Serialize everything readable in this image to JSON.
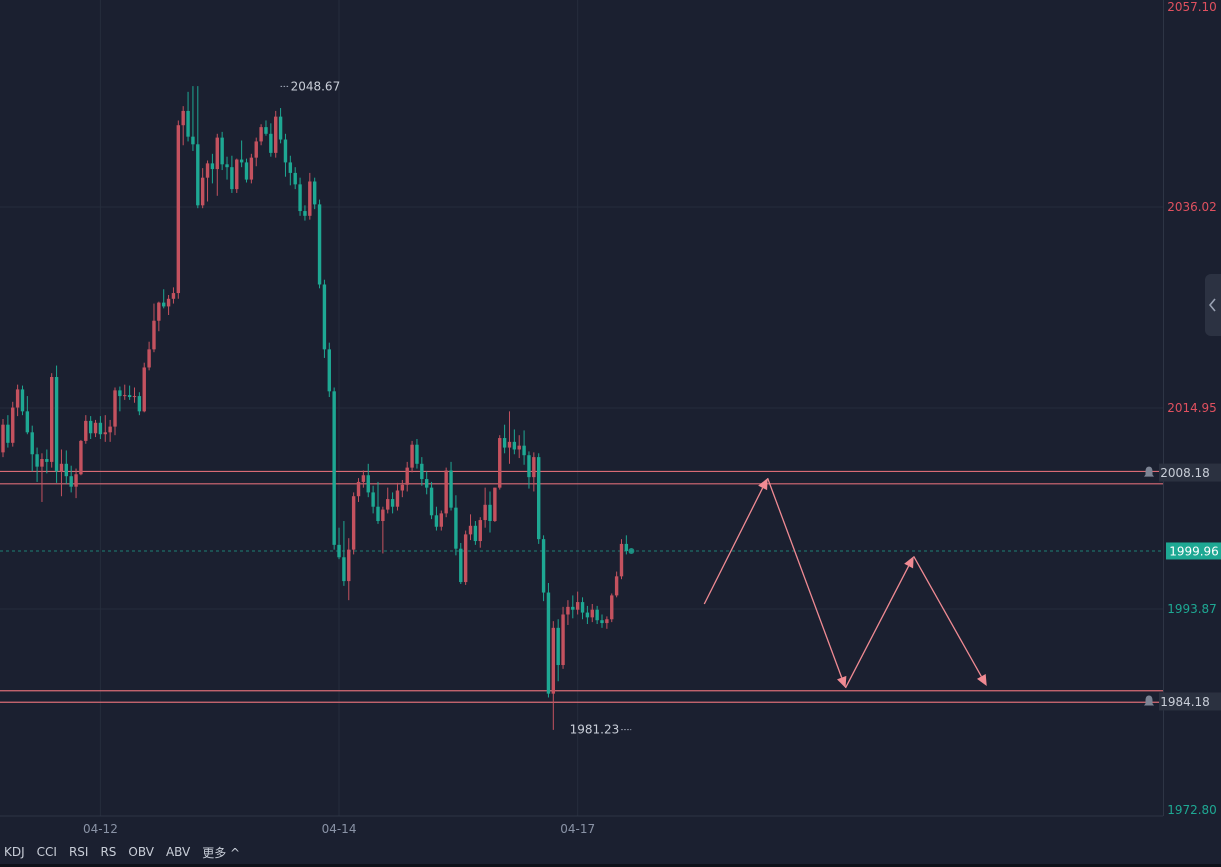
{
  "chart_data": {
    "type": "candlestick",
    "y_axis_ticks": [
      {
        "label": "2057.10",
        "value": 2057.1,
        "color": "#e0505f"
      },
      {
        "label": "2036.02",
        "value": 2036.02,
        "color": "#e0505f"
      },
      {
        "label": "2014.95",
        "value": 2014.95,
        "color": "#e0505f"
      },
      {
        "label": "1993.87",
        "value": 1993.87,
        "color": "#1ea893"
      },
      {
        "label": "1972.80",
        "value": 1972.8,
        "color": "#1ea893"
      }
    ],
    "ylim": [
      1972.8,
      2057.1
    ],
    "x_axis_ticks": [
      {
        "label": "04-12",
        "index": 20
      },
      {
        "label": "04-14",
        "index": 69
      },
      {
        "label": "04-17",
        "index": 118
      }
    ],
    "current_price": {
      "label": "1999.96",
      "value": 1999.96
    },
    "high_marker": {
      "label": "2048.67",
      "value": 2048.67,
      "index": 57
    },
    "low_marker": {
      "label": "1981.23",
      "value": 1981.23,
      "index": 129
    },
    "alert_lines": [
      {
        "label": "2008.18",
        "value": 2008.18,
        "band": [
          2007.0,
          2008.3
        ]
      },
      {
        "label": "1984.18",
        "value": 1984.18,
        "band": [
          1984.1,
          1985.3
        ]
      }
    ],
    "projection_path": [
      {
        "index": 144,
        "value": 1994.4
      },
      {
        "index": 157,
        "value": 2007.6
      },
      {
        "index": 173,
        "value": 1985.6
      },
      {
        "index": 187,
        "value": 1999.4
      },
      {
        "index": 202,
        "value": 1985.8
      }
    ],
    "candles": [
      [
        2010.3,
        2013.8,
        2009.8,
        2013.2
      ],
      [
        2013.2,
        2014.2,
        2010.8,
        2011.3
      ],
      [
        2011.3,
        2015.6,
        2010.9,
        2015.0
      ],
      [
        2015.0,
        2017.4,
        2014.1,
        2016.9
      ],
      [
        2016.9,
        2017.3,
        2014.2,
        2014.6
      ],
      [
        2014.6,
        2016.2,
        2012.2,
        2012.4
      ],
      [
        2012.4,
        2013.1,
        2008.3,
        2010.1
      ],
      [
        2010.1,
        2010.8,
        2007.2,
        2008.8
      ],
      [
        2008.8,
        2010.2,
        2005.1,
        2009.6
      ],
      [
        2009.6,
        2010.6,
        2008.1,
        2009.3
      ],
      [
        2009.3,
        2018.6,
        2008.7,
        2018.2
      ],
      [
        2018.2,
        2019.4,
        2007.1,
        2008.3
      ],
      [
        2008.3,
        2010.6,
        2005.7,
        2009.1
      ],
      [
        2009.1,
        2010.5,
        2007.0,
        2007.8
      ],
      [
        2007.8,
        2008.9,
        2006.1,
        2006.7
      ],
      [
        2006.7,
        2008.6,
        2005.5,
        2008.0
      ],
      [
        2008.0,
        2011.6,
        2007.9,
        2011.5
      ],
      [
        2011.5,
        2014.2,
        2011.2,
        2013.6
      ],
      [
        2013.6,
        2014.1,
        2011.7,
        2012.3
      ],
      [
        2012.3,
        2013.7,
        2011.9,
        2013.4
      ],
      [
        2013.4,
        2014.1,
        2011.7,
        2012.2
      ],
      [
        2012.2,
        2014.2,
        2011.4,
        2012.4
      ],
      [
        2012.4,
        2013.7,
        2011.4,
        2013.0
      ],
      [
        2013.0,
        2017.1,
        2012.1,
        2016.8
      ],
      [
        2016.8,
        2017.2,
        2014.6,
        2016.2
      ],
      [
        2016.2,
        2017.4,
        2015.8,
        2016.3
      ],
      [
        2016.3,
        2017.3,
        2015.8,
        2016.1
      ],
      [
        2016.1,
        2017.1,
        2015.5,
        2016.2
      ],
      [
        2016.2,
        2016.6,
        2014.2,
        2014.6
      ],
      [
        2014.6,
        2019.7,
        2014.5,
        2019.2
      ],
      [
        2019.2,
        2021.9,
        2018.9,
        2021.1
      ],
      [
        2021.1,
        2025.9,
        2020.8,
        2024.1
      ],
      [
        2024.1,
        2026.1,
        2023.0,
        2026.0
      ],
      [
        2026.0,
        2027.4,
        2025.4,
        2025.6
      ],
      [
        2025.6,
        2026.8,
        2024.7,
        2026.4
      ],
      [
        2026.4,
        2027.6,
        2025.9,
        2027.0
      ],
      [
        2027.0,
        2045.1,
        2026.4,
        2044.6
      ],
      [
        2044.6,
        2046.6,
        2042.5,
        2046.1
      ],
      [
        2046.1,
        2048.1,
        2042.9,
        2043.4
      ],
      [
        2043.4,
        2048.7,
        2041.9,
        2042.6
      ],
      [
        2042.6,
        2048.7,
        2035.9,
        2036.2
      ],
      [
        2036.2,
        2040.1,
        2035.9,
        2039.1
      ],
      [
        2039.1,
        2040.9,
        2036.6,
        2040.6
      ],
      [
        2040.6,
        2041.6,
        2038.5,
        2040.0
      ],
      [
        2040.0,
        2043.7,
        2037.2,
        2043.3
      ],
      [
        2043.3,
        2043.9,
        2039.9,
        2040.5
      ],
      [
        2040.5,
        2041.3,
        2038.9,
        2040.2
      ],
      [
        2040.2,
        2041.4,
        2037.5,
        2037.9
      ],
      [
        2037.9,
        2041.1,
        2037.5,
        2041.0
      ],
      [
        2041.0,
        2043.0,
        2040.2,
        2040.7
      ],
      [
        2040.7,
        2041.1,
        2038.6,
        2038.9
      ],
      [
        2038.9,
        2041.6,
        2038.5,
        2041.2
      ],
      [
        2041.2,
        2043.3,
        2040.3,
        2042.9
      ],
      [
        2042.9,
        2044.7,
        2042.5,
        2044.4
      ],
      [
        2044.4,
        2045.1,
        2043.5,
        2043.7
      ],
      [
        2043.7,
        2044.8,
        2041.3,
        2041.7
      ],
      [
        2041.7,
        2046.1,
        2041.2,
        2045.5
      ],
      [
        2045.5,
        2046.4,
        2042.7,
        2043.1
      ],
      [
        2043.1,
        2043.7,
        2039.2,
        2040.7
      ],
      [
        2040.7,
        2041.4,
        2038.3,
        2039.6
      ],
      [
        2039.6,
        2040.2,
        2037.9,
        2038.4
      ],
      [
        2038.4,
        2039.1,
        2035.1,
        2035.6
      ],
      [
        2035.6,
        2036.2,
        2034.6,
        2035.1
      ],
      [
        2035.1,
        2039.6,
        2034.7,
        2038.7
      ],
      [
        2038.7,
        2039.1,
        2035.8,
        2036.3
      ],
      [
        2036.3,
        2036.8,
        2027.5,
        2027.9
      ],
      [
        2027.9,
        2028.4,
        2020.2,
        2021.1
      ],
      [
        2021.1,
        2021.8,
        2016.1,
        2016.7
      ],
      [
        2016.7,
        2017.1,
        2000.1,
        2000.6
      ],
      [
        2000.6,
        2002.4,
        1999.1,
        1999.3
      ],
      [
        1999.3,
        2003.1,
        1996.3,
        1996.8
      ],
      [
        1996.8,
        2001.3,
        1994.8,
        2000.1
      ],
      [
        2000.1,
        2006.1,
        1999.6,
        2005.7
      ],
      [
        2005.7,
        2007.6,
        2005.1,
        2007.2
      ],
      [
        2007.2,
        2008.4,
        2006.6,
        2007.9
      ],
      [
        2007.9,
        2009.1,
        2005.6,
        2006.1
      ],
      [
        2006.1,
        2006.8,
        2003.9,
        2004.6
      ],
      [
        2004.6,
        2007.2,
        2002.8,
        2003.1
      ],
      [
        2003.1,
        2004.6,
        1999.7,
        2004.3
      ],
      [
        2004.3,
        2006.6,
        2003.9,
        2005.4
      ],
      [
        2005.4,
        2006.1,
        2003.9,
        2004.6
      ],
      [
        2004.6,
        2007.1,
        2004.2,
        2006.3
      ],
      [
        2006.3,
        2007.4,
        2005.6,
        2006.9
      ],
      [
        2006.9,
        2009.3,
        2006.2,
        2008.7
      ],
      [
        2008.7,
        2011.5,
        2008.2,
        2011.1
      ],
      [
        2011.1,
        2011.7,
        2008.6,
        2009.1
      ],
      [
        2009.1,
        2009.8,
        2006.8,
        2007.5
      ],
      [
        2007.5,
        2008.3,
        2005.9,
        2006.6
      ],
      [
        2006.6,
        2007.2,
        2003.3,
        2003.7
      ],
      [
        2003.7,
        2004.6,
        2002.1,
        2002.5
      ],
      [
        2002.5,
        2004.2,
        2002.1,
        2003.9
      ],
      [
        2003.9,
        2008.7,
        2003.5,
        2008.4
      ],
      [
        2008.4,
        2009.3,
        2004.2,
        2004.5
      ],
      [
        2004.5,
        2005.8,
        1999.5,
        2000.2
      ],
      [
        2000.2,
        2000.8,
        1996.5,
        1996.7
      ],
      [
        1996.7,
        2002.1,
        1996.4,
        2001.7
      ],
      [
        2001.7,
        2003.8,
        2001.1,
        2002.6
      ],
      [
        2002.6,
        2003.1,
        2000.6,
        2001.0
      ],
      [
        2001.0,
        2003.5,
        2000.3,
        2003.2
      ],
      [
        2003.2,
        2006.6,
        2002.4,
        2004.8
      ],
      [
        2004.8,
        2006.2,
        2001.9,
        2003.1
      ],
      [
        2003.1,
        2006.6,
        2003.0,
        2006.6
      ],
      [
        2006.6,
        2012.1,
        2006.4,
        2011.8
      ],
      [
        2011.8,
        2013.2,
        2010.2,
        2010.8
      ],
      [
        2010.8,
        2014.6,
        2009.1,
        2011.4
      ],
      [
        2011.4,
        2012.7,
        2010.1,
        2010.6
      ],
      [
        2010.6,
        2012.1,
        2009.7,
        2011.0
      ],
      [
        2011.0,
        2012.6,
        2009.0,
        2010.0
      ],
      [
        2010.0,
        2010.4,
        2006.5,
        2007.7
      ],
      [
        2007.7,
        2010.3,
        2006.2,
        2009.8
      ],
      [
        2009.8,
        2010.2,
        2000.7,
        2001.2
      ],
      [
        2001.2,
        2001.6,
        1994.7,
        1995.6
      ],
      [
        1995.6,
        1996.6,
        1984.6,
        1985.0
      ],
      [
        1985.0,
        1992.6,
        1981.2,
        1991.9
      ],
      [
        1991.9,
        1992.8,
        1986.3,
        1988.0
      ],
      [
        1988.0,
        1994.1,
        1987.6,
        1993.3
      ],
      [
        1993.3,
        1994.8,
        1992.2,
        1994.1
      ],
      [
        1994.1,
        1995.3,
        1992.9,
        1993.8
      ],
      [
        1993.8,
        1995.7,
        1993.3,
        1994.6
      ],
      [
        1994.6,
        1995.1,
        1992.8,
        1993.5
      ],
      [
        1993.5,
        1994.2,
        1992.3,
        1993.0
      ],
      [
        1993.0,
        1994.4,
        1992.5,
        1993.8
      ],
      [
        1993.8,
        1994.2,
        1992.3,
        1992.7
      ],
      [
        1992.7,
        1993.3,
        1991.9,
        1992.4
      ],
      [
        1992.4,
        1993.1,
        1991.8,
        1992.8
      ],
      [
        1992.8,
        1995.5,
        1992.5,
        1995.3
      ],
      [
        1995.3,
        1997.8,
        1995.1,
        1997.3
      ],
      [
        1997.3,
        2001.2,
        1997.0,
        2000.7
      ],
      [
        2000.7,
        2001.6,
        1999.6,
        1999.96
      ]
    ]
  },
  "indicators": {
    "items": [
      "KDJ",
      "CCI",
      "RSI",
      "RS",
      "OBV",
      "ABV",
      "更多 ^"
    ]
  },
  "colors": {
    "up": "#c4525f",
    "down": "#1ea893",
    "background": "#1b2030",
    "grid": "#262d3c",
    "alert_line": "#d96b75",
    "projection": "#f08a93",
    "current_price_bg": "#1ea893"
  }
}
